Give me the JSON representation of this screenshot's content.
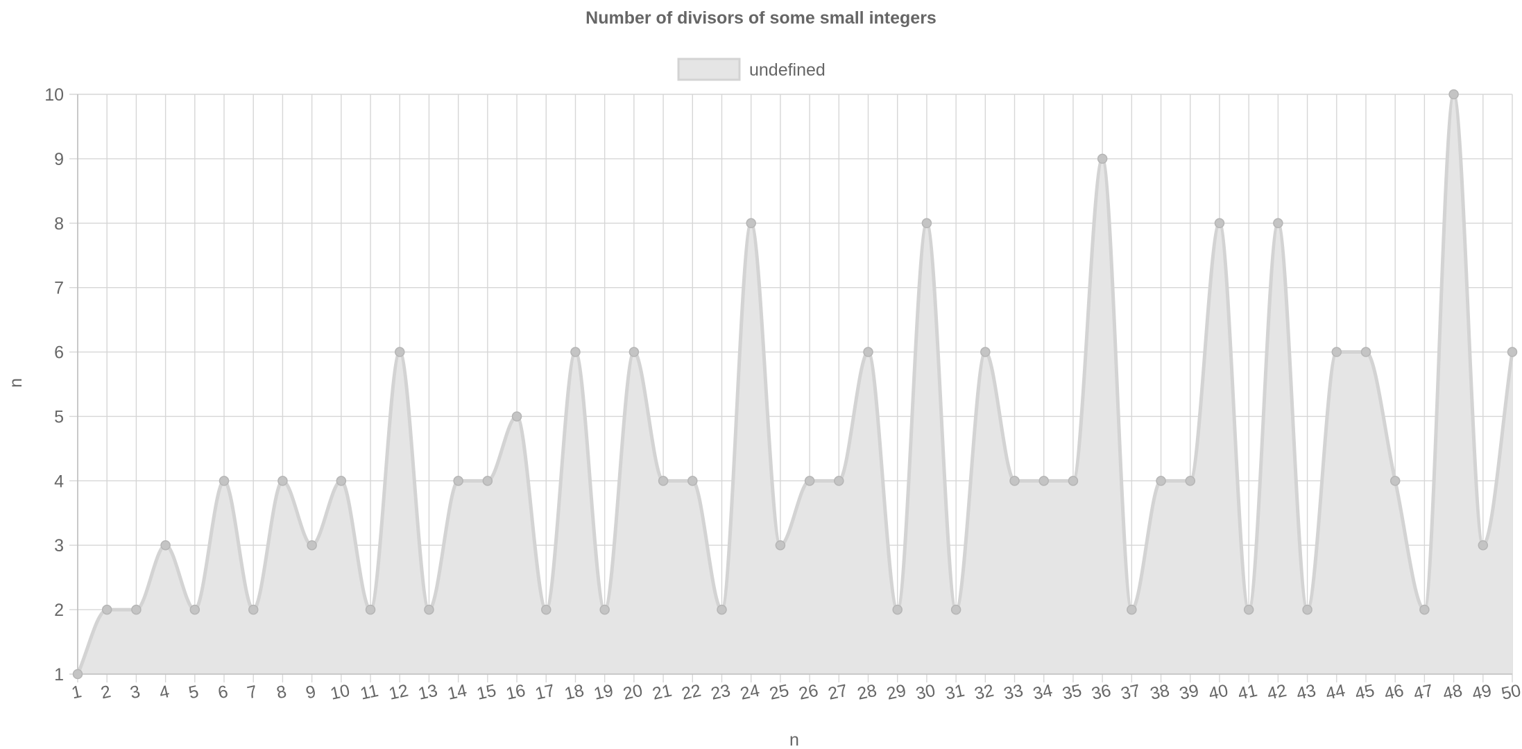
{
  "chart_data": {
    "type": "area",
    "title": "Number of divisors of some small integers",
    "xlabel": "n",
    "ylabel": "n",
    "categories": [
      "1",
      "2",
      "3",
      "4",
      "5",
      "6",
      "7",
      "8",
      "9",
      "10",
      "11",
      "12",
      "13",
      "14",
      "15",
      "16",
      "17",
      "18",
      "19",
      "20",
      "21",
      "22",
      "23",
      "24",
      "25",
      "26",
      "27",
      "28",
      "29",
      "30",
      "31",
      "32",
      "33",
      "34",
      "35",
      "36",
      "37",
      "38",
      "39",
      "40",
      "41",
      "42",
      "43",
      "44",
      "45",
      "46",
      "47",
      "48",
      "49",
      "50"
    ],
    "series": [
      {
        "name": "undefined",
        "values": [
          1,
          2,
          2,
          3,
          2,
          4,
          2,
          4,
          3,
          4,
          2,
          6,
          2,
          4,
          4,
          5,
          2,
          6,
          2,
          6,
          4,
          4,
          2,
          8,
          3,
          4,
          4,
          6,
          2,
          8,
          2,
          6,
          4,
          4,
          4,
          9,
          2,
          4,
          4,
          8,
          2,
          8,
          2,
          6,
          6,
          4,
          2,
          10,
          3,
          6
        ]
      }
    ],
    "ylim": [
      1,
      10
    ],
    "yticks": [
      "1",
      "2",
      "3",
      "4",
      "5",
      "6",
      "7",
      "8",
      "9",
      "10"
    ],
    "grid": true,
    "legend_position": "top-center",
    "colors": {
      "fill": "#e5e5e5",
      "line": "#d3d3d3",
      "point": "#c4c4c4",
      "grid": "#d6d6d6",
      "text": "#666666"
    }
  }
}
